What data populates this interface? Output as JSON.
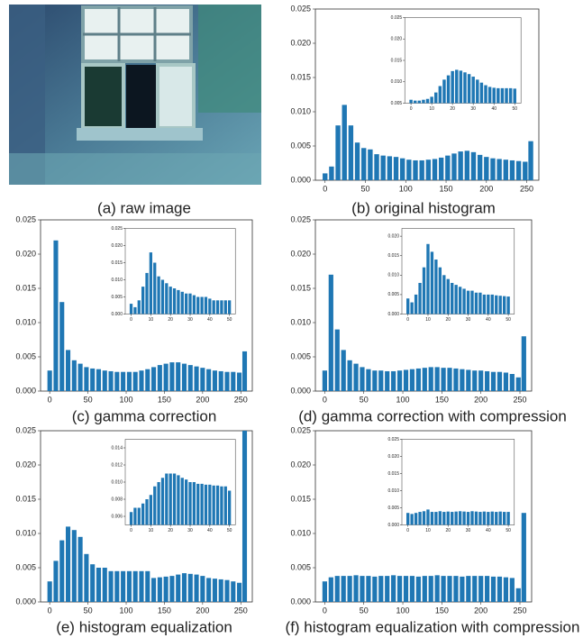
{
  "image": {
    "caption": "(a) raw image"
  },
  "chart_data": [
    {
      "type": "bar",
      "caption": "(b) original histogram",
      "color": "#1f77b4",
      "x": [
        0,
        8,
        16,
        24,
        32,
        40,
        48,
        56,
        64,
        72,
        80,
        88,
        96,
        104,
        112,
        120,
        128,
        136,
        144,
        152,
        160,
        168,
        176,
        184,
        192,
        200,
        208,
        216,
        224,
        232,
        240,
        248,
        255
      ],
      "values": [
        0.001,
        0.002,
        0.008,
        0.011,
        0.008,
        0.0055,
        0.0047,
        0.0045,
        0.0038,
        0.0036,
        0.0035,
        0.0034,
        0.0032,
        0.003,
        0.0029,
        0.0029,
        0.003,
        0.0031,
        0.0033,
        0.0036,
        0.0039,
        0.0042,
        0.0043,
        0.0041,
        0.0037,
        0.0034,
        0.0032,
        0.0031,
        0.003,
        0.0029,
        0.0028,
        0.0027,
        0.0057
      ],
      "xlim": [
        -12,
        265
      ],
      "ylim": [
        0,
        0.025
      ],
      "xticks": [
        0,
        50,
        100,
        150,
        200,
        250
      ],
      "yticks": [
        {
          "value": 0,
          "label": "0.000"
        },
        {
          "value": 0.005,
          "label": "0.005"
        },
        {
          "value": 0.01,
          "label": "0.010"
        },
        {
          "value": 0.015,
          "label": "0.015"
        },
        {
          "value": 0.02,
          "label": "0.020"
        },
        {
          "value": 0.025,
          "label": "0.025"
        }
      ],
      "inset": {
        "x": [
          0,
          2,
          4,
          6,
          8,
          10,
          12,
          14,
          16,
          18,
          20,
          22,
          24,
          26,
          28,
          30,
          32,
          34,
          36,
          38,
          40,
          42,
          44,
          46,
          48,
          50
        ],
        "values": [
          0.0058,
          0.0056,
          0.0056,
          0.0058,
          0.006,
          0.0065,
          0.0075,
          0.009,
          0.0105,
          0.0115,
          0.0125,
          0.0128,
          0.0126,
          0.0122,
          0.0118,
          0.0112,
          0.0105,
          0.0098,
          0.0092,
          0.0088,
          0.0086,
          0.0085,
          0.0085,
          0.0085,
          0.0085,
          0.0084
        ],
        "xlim": [
          -3,
          53
        ],
        "ylim": [
          0.005,
          0.025
        ],
        "xticks": [
          0,
          10,
          20,
          30,
          40,
          50
        ],
        "yticks": [
          {
            "value": 0.005,
            "label": "0.005"
          },
          {
            "value": 0.01,
            "label": "0.010"
          },
          {
            "value": 0.015,
            "label": "0.015"
          },
          {
            "value": 0.02,
            "label": "0.020"
          },
          {
            "value": 0.025,
            "label": "0.025"
          }
        ]
      }
    },
    {
      "type": "bar",
      "caption": "(c) gamma correction",
      "color": "#1f77b4",
      "x": [
        0,
        8,
        16,
        24,
        32,
        40,
        48,
        56,
        64,
        72,
        80,
        88,
        96,
        104,
        112,
        120,
        128,
        136,
        144,
        152,
        160,
        168,
        176,
        184,
        192,
        200,
        208,
        216,
        224,
        232,
        240,
        248,
        255
      ],
      "values": [
        0.003,
        0.022,
        0.013,
        0.006,
        0.0045,
        0.004,
        0.0035,
        0.0033,
        0.0032,
        0.003,
        0.0029,
        0.0028,
        0.0028,
        0.0028,
        0.0028,
        0.003,
        0.0032,
        0.0035,
        0.0038,
        0.004,
        0.0042,
        0.0042,
        0.004,
        0.0038,
        0.0036,
        0.0034,
        0.0032,
        0.003,
        0.0029,
        0.0028,
        0.0028,
        0.0027,
        0.0058
      ],
      "xlim": [
        -12,
        265
      ],
      "ylim": [
        0,
        0.025
      ],
      "xticks": [
        0,
        50,
        100,
        150,
        200,
        250
      ],
      "yticks": [
        {
          "value": 0,
          "label": "0.000"
        },
        {
          "value": 0.005,
          "label": "0.005"
        },
        {
          "value": 0.01,
          "label": "0.010"
        },
        {
          "value": 0.015,
          "label": "0.015"
        },
        {
          "value": 0.02,
          "label": "0.020"
        },
        {
          "value": 0.025,
          "label": "0.025"
        }
      ],
      "inset": {
        "x": [
          0,
          2,
          4,
          6,
          8,
          10,
          12,
          14,
          16,
          18,
          20,
          22,
          24,
          26,
          28,
          30,
          32,
          34,
          36,
          38,
          40,
          42,
          44,
          46,
          48,
          50
        ],
        "values": [
          0.003,
          0.002,
          0.004,
          0.008,
          0.012,
          0.018,
          0.015,
          0.011,
          0.01,
          0.009,
          0.008,
          0.0075,
          0.007,
          0.0065,
          0.006,
          0.006,
          0.0055,
          0.005,
          0.005,
          0.005,
          0.0045,
          0.004,
          0.004,
          0.004,
          0.004,
          0.004
        ],
        "xlim": [
          -3,
          53
        ],
        "ylim": [
          0,
          0.025
        ],
        "xticks": [
          0,
          10,
          20,
          30,
          40,
          50
        ],
        "yticks": [
          {
            "value": 0,
            "label": "0.000"
          },
          {
            "value": 0.005,
            "label": "0.005"
          },
          {
            "value": 0.01,
            "label": "0.010"
          },
          {
            "value": 0.015,
            "label": "0.015"
          },
          {
            "value": 0.02,
            "label": "0.020"
          },
          {
            "value": 0.025,
            "label": "0.025"
          }
        ]
      }
    },
    {
      "type": "bar",
      "caption": "(d) gamma correction with compression",
      "color": "#1f77b4",
      "x": [
        0,
        8,
        16,
        24,
        32,
        40,
        48,
        56,
        64,
        72,
        80,
        88,
        96,
        104,
        112,
        120,
        128,
        136,
        144,
        152,
        160,
        168,
        176,
        184,
        192,
        200,
        208,
        216,
        224,
        232,
        240,
        248,
        255
      ],
      "values": [
        0.003,
        0.017,
        0.009,
        0.006,
        0.0045,
        0.004,
        0.0035,
        0.0032,
        0.003,
        0.003,
        0.0029,
        0.0029,
        0.003,
        0.0031,
        0.0032,
        0.0033,
        0.0034,
        0.0035,
        0.0035,
        0.0034,
        0.0034,
        0.0033,
        0.0032,
        0.0031,
        0.003,
        0.003,
        0.0029,
        0.0028,
        0.0028,
        0.0027,
        0.0025,
        0.002,
        0.008
      ],
      "xlim": [
        -12,
        265
      ],
      "ylim": [
        0,
        0.025
      ],
      "xticks": [
        0,
        50,
        100,
        150,
        200,
        250
      ],
      "yticks": [
        {
          "value": 0,
          "label": "0.000"
        },
        {
          "value": 0.005,
          "label": "0.005"
        },
        {
          "value": 0.01,
          "label": "0.010"
        },
        {
          "value": 0.015,
          "label": "0.015"
        },
        {
          "value": 0.02,
          "label": "0.020"
        },
        {
          "value": 0.025,
          "label": "0.025"
        }
      ],
      "inset": {
        "x": [
          0,
          2,
          4,
          6,
          8,
          10,
          12,
          14,
          16,
          18,
          20,
          22,
          24,
          26,
          28,
          30,
          32,
          34,
          36,
          38,
          40,
          42,
          44,
          46,
          48,
          50
        ],
        "values": [
          0.004,
          0.003,
          0.005,
          0.008,
          0.012,
          0.018,
          0.016,
          0.014,
          0.012,
          0.01,
          0.009,
          0.008,
          0.0075,
          0.007,
          0.0065,
          0.006,
          0.006,
          0.0055,
          0.0055,
          0.005,
          0.005,
          0.005,
          0.0048,
          0.0047,
          0.0046,
          0.0045
        ],
        "xlim": [
          -3,
          53
        ],
        "ylim": [
          0,
          0.022
        ],
        "xticks": [
          0,
          10,
          20,
          30,
          40,
          50
        ],
        "yticks": [
          {
            "value": 0,
            "label": "0.000"
          },
          {
            "value": 0.005,
            "label": "0.005"
          },
          {
            "value": 0.01,
            "label": "0.010"
          },
          {
            "value": 0.015,
            "label": "0.015"
          },
          {
            "value": 0.02,
            "label": "0.020"
          }
        ]
      }
    },
    {
      "type": "bar",
      "caption": "(e) histogram equalization",
      "color": "#1f77b4",
      "x": [
        0,
        8,
        16,
        24,
        32,
        40,
        48,
        56,
        64,
        72,
        80,
        88,
        96,
        104,
        112,
        120,
        128,
        136,
        144,
        152,
        160,
        168,
        176,
        184,
        192,
        200,
        208,
        216,
        224,
        232,
        240,
        248,
        255
      ],
      "values": [
        0.003,
        0.006,
        0.009,
        0.011,
        0.0105,
        0.0095,
        0.007,
        0.0055,
        0.005,
        0.005,
        0.0045,
        0.0045,
        0.0045,
        0.0045,
        0.0045,
        0.0045,
        0.0045,
        0.0035,
        0.0036,
        0.0037,
        0.0038,
        0.004,
        0.0042,
        0.0041,
        0.004,
        0.0038,
        0.0035,
        0.0034,
        0.0033,
        0.0032,
        0.003,
        0.0028,
        0.025
      ],
      "xlim": [
        -12,
        265
      ],
      "ylim": [
        0,
        0.025
      ],
      "xticks": [
        0,
        50,
        100,
        150,
        200,
        250
      ],
      "yticks": [
        {
          "value": 0,
          "label": "0.000"
        },
        {
          "value": 0.005,
          "label": "0.005"
        },
        {
          "value": 0.01,
          "label": "0.010"
        },
        {
          "value": 0.015,
          "label": "0.015"
        },
        {
          "value": 0.02,
          "label": "0.020"
        },
        {
          "value": 0.025,
          "label": "0.025"
        }
      ],
      "inset": {
        "x": [
          0,
          2,
          4,
          6,
          8,
          10,
          12,
          14,
          16,
          18,
          20,
          22,
          24,
          26,
          28,
          30,
          32,
          34,
          36,
          38,
          40,
          42,
          44,
          46,
          48,
          50
        ],
        "values": [
          0.0065,
          0.007,
          0.007,
          0.0075,
          0.008,
          0.0085,
          0.0095,
          0.01,
          0.0105,
          0.011,
          0.011,
          0.011,
          0.0108,
          0.0105,
          0.0103,
          0.01,
          0.01,
          0.0098,
          0.0098,
          0.0097,
          0.0097,
          0.0096,
          0.0096,
          0.0095,
          0.0095,
          0.009
        ],
        "xlim": [
          -3,
          53
        ],
        "ylim": [
          0.005,
          0.015
        ],
        "xticks": [
          0,
          10,
          20,
          30,
          40,
          50
        ],
        "yticks": [
          {
            "value": 0.006,
            "label": "0.006"
          },
          {
            "value": 0.008,
            "label": "0.008"
          },
          {
            "value": 0.01,
            "label": "0.010"
          },
          {
            "value": 0.012,
            "label": "0.012"
          },
          {
            "value": 0.014,
            "label": "0.014"
          }
        ]
      }
    },
    {
      "type": "bar",
      "caption": "(f) histogram equalization with compression",
      "color": "#1f77b4",
      "x": [
        0,
        8,
        16,
        24,
        32,
        40,
        48,
        56,
        64,
        72,
        80,
        88,
        96,
        104,
        112,
        120,
        128,
        136,
        144,
        152,
        160,
        168,
        176,
        184,
        192,
        200,
        208,
        216,
        224,
        232,
        240,
        248,
        255
      ],
      "values": [
        0.003,
        0.0036,
        0.0038,
        0.0038,
        0.0038,
        0.0039,
        0.0038,
        0.0038,
        0.0037,
        0.0038,
        0.0038,
        0.0039,
        0.0038,
        0.0038,
        0.0038,
        0.0037,
        0.0038,
        0.0038,
        0.0039,
        0.0038,
        0.0038,
        0.0038,
        0.0037,
        0.0038,
        0.0038,
        0.0038,
        0.0038,
        0.0037,
        0.0037,
        0.0036,
        0.0035,
        0.002,
        0.013
      ],
      "xlim": [
        -12,
        265
      ],
      "ylim": [
        0,
        0.025
      ],
      "xticks": [
        0,
        50,
        100,
        150,
        200,
        250
      ],
      "yticks": [
        {
          "value": 0,
          "label": "0.000"
        },
        {
          "value": 0.005,
          "label": "0.005"
        },
        {
          "value": 0.01,
          "label": "0.010"
        },
        {
          "value": 0.015,
          "label": "0.015"
        },
        {
          "value": 0.02,
          "label": "0.020"
        },
        {
          "value": 0.025,
          "label": "0.025"
        }
      ],
      "inset": {
        "x": [
          0,
          2,
          4,
          6,
          8,
          10,
          12,
          14,
          16,
          18,
          20,
          22,
          24,
          26,
          28,
          30,
          32,
          34,
          36,
          38,
          40,
          42,
          44,
          46,
          48,
          50
        ],
        "values": [
          0.0035,
          0.0032,
          0.0035,
          0.0038,
          0.004,
          0.0045,
          0.0038,
          0.0038,
          0.004,
          0.0038,
          0.0039,
          0.0038,
          0.0039,
          0.004,
          0.0039,
          0.0038,
          0.004,
          0.0039,
          0.0038,
          0.0039,
          0.0038,
          0.0039,
          0.0038,
          0.0039,
          0.0038,
          0.0038
        ],
        "xlim": [
          -3,
          53
        ],
        "ylim": [
          0,
          0.025
        ],
        "xticks": [
          0,
          10,
          20,
          30,
          40,
          50
        ],
        "yticks": [
          {
            "value": 0,
            "label": "0.000"
          },
          {
            "value": 0.005,
            "label": "0.005"
          },
          {
            "value": 0.01,
            "label": "0.010"
          },
          {
            "value": 0.015,
            "label": "0.015"
          },
          {
            "value": 0.02,
            "label": "0.020"
          },
          {
            "value": 0.025,
            "label": "0.025"
          }
        ]
      }
    }
  ]
}
